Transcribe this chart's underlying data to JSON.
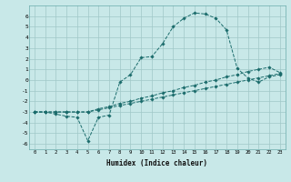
{
  "xlabel": "Humidex (Indice chaleur)",
  "xlim": [
    -0.5,
    23.5
  ],
  "ylim": [
    -6.5,
    7.0
  ],
  "yticks": [
    -6,
    -5,
    -4,
    -3,
    -2,
    -1,
    0,
    1,
    2,
    3,
    4,
    5,
    6
  ],
  "xticks": [
    0,
    1,
    2,
    3,
    4,
    5,
    6,
    7,
    8,
    9,
    10,
    11,
    12,
    13,
    14,
    15,
    16,
    17,
    18,
    19,
    20,
    21,
    22,
    23
  ],
  "background_color": "#c8e8e8",
  "grid_color": "#a0c8c8",
  "line_color": "#1a6b6b",
  "line1_x": [
    0,
    1,
    2,
    3,
    4,
    5,
    6,
    7,
    8,
    9,
    10,
    11,
    12,
    13,
    14,
    15,
    16,
    17,
    18,
    19,
    20,
    21,
    22,
    23
  ],
  "line1_y": [
    -3.0,
    -3.0,
    -3.2,
    -3.4,
    -3.5,
    -5.7,
    -3.5,
    -3.3,
    -0.2,
    0.5,
    2.1,
    2.2,
    3.4,
    5.0,
    5.8,
    6.3,
    6.2,
    5.8,
    4.7,
    1.1,
    0.2,
    -0.2,
    0.3,
    0.5
  ],
  "line2_x": [
    0,
    1,
    2,
    3,
    4,
    5,
    6,
    7,
    8,
    9,
    10,
    11,
    12,
    13,
    14,
    15,
    16,
    17,
    18,
    19,
    20,
    21,
    22,
    23
  ],
  "line2_y": [
    -3.0,
    -3.0,
    -3.0,
    -3.0,
    -3.0,
    -3.0,
    -2.8,
    -2.6,
    -2.4,
    -2.2,
    -2.0,
    -1.8,
    -1.6,
    -1.4,
    -1.2,
    -1.0,
    -0.8,
    -0.6,
    -0.4,
    -0.2,
    0.0,
    0.2,
    0.4,
    0.6
  ],
  "line3_x": [
    0,
    1,
    2,
    3,
    4,
    5,
    6,
    7,
    8,
    9,
    10,
    11,
    12,
    13,
    14,
    15,
    16,
    17,
    18,
    19,
    20,
    21,
    22,
    23
  ],
  "line3_y": [
    -3.0,
    -3.0,
    -3.0,
    -3.0,
    -3.0,
    -3.0,
    -2.7,
    -2.5,
    -2.2,
    -2.0,
    -1.7,
    -1.5,
    -1.2,
    -1.0,
    -0.7,
    -0.5,
    -0.2,
    0.0,
    0.3,
    0.5,
    0.8,
    1.0,
    1.2,
    0.7
  ]
}
